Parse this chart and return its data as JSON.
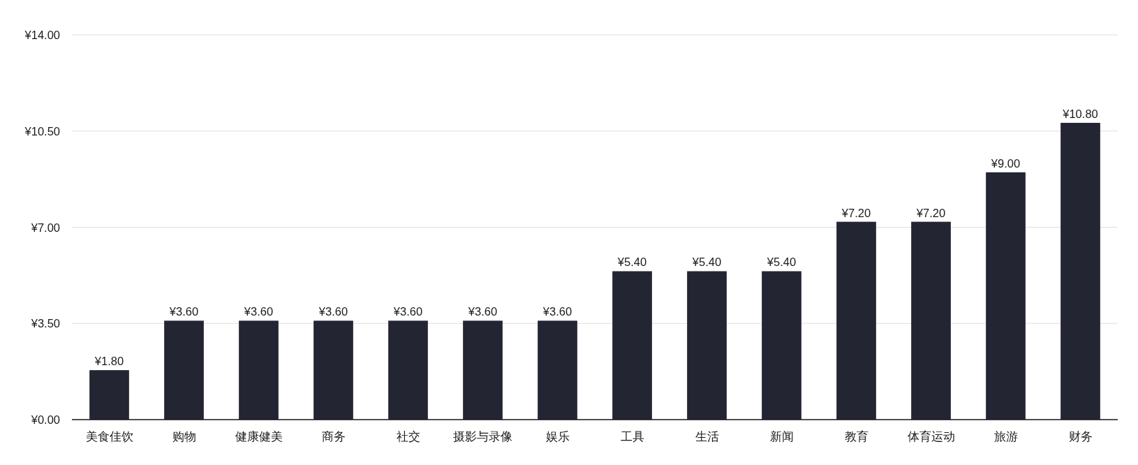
{
  "chart_data": {
    "type": "bar",
    "categories": [
      "美食佳饮",
      "购物",
      "健康健美",
      "商务",
      "社交",
      "摄影与录像",
      "娱乐",
      "工具",
      "生活",
      "新闻",
      "教育",
      "体育运动",
      "旅游",
      "财务"
    ],
    "values": [
      1.8,
      3.6,
      3.6,
      3.6,
      3.6,
      3.6,
      3.6,
      5.4,
      5.4,
      5.4,
      7.2,
      7.2,
      9.0,
      10.8
    ],
    "value_labels": [
      "¥1.80",
      "¥3.60",
      "¥3.60",
      "¥3.60",
      "¥3.60",
      "¥3.60",
      "¥3.60",
      "¥5.40",
      "¥5.40",
      "¥5.40",
      "¥7.20",
      "¥7.20",
      "¥9.00",
      "¥10.80"
    ],
    "color": "#232532",
    "ylim": [
      0,
      14
    ],
    "yticks": [
      {
        "value": 0,
        "label": "¥0.00"
      },
      {
        "value": 3.5,
        "label": "¥3.50"
      },
      {
        "value": 7,
        "label": "¥7.00"
      },
      {
        "value": 10.5,
        "label": "¥10.50"
      },
      {
        "value": 14,
        "label": "¥14.00"
      }
    ],
    "grid": "y"
  }
}
